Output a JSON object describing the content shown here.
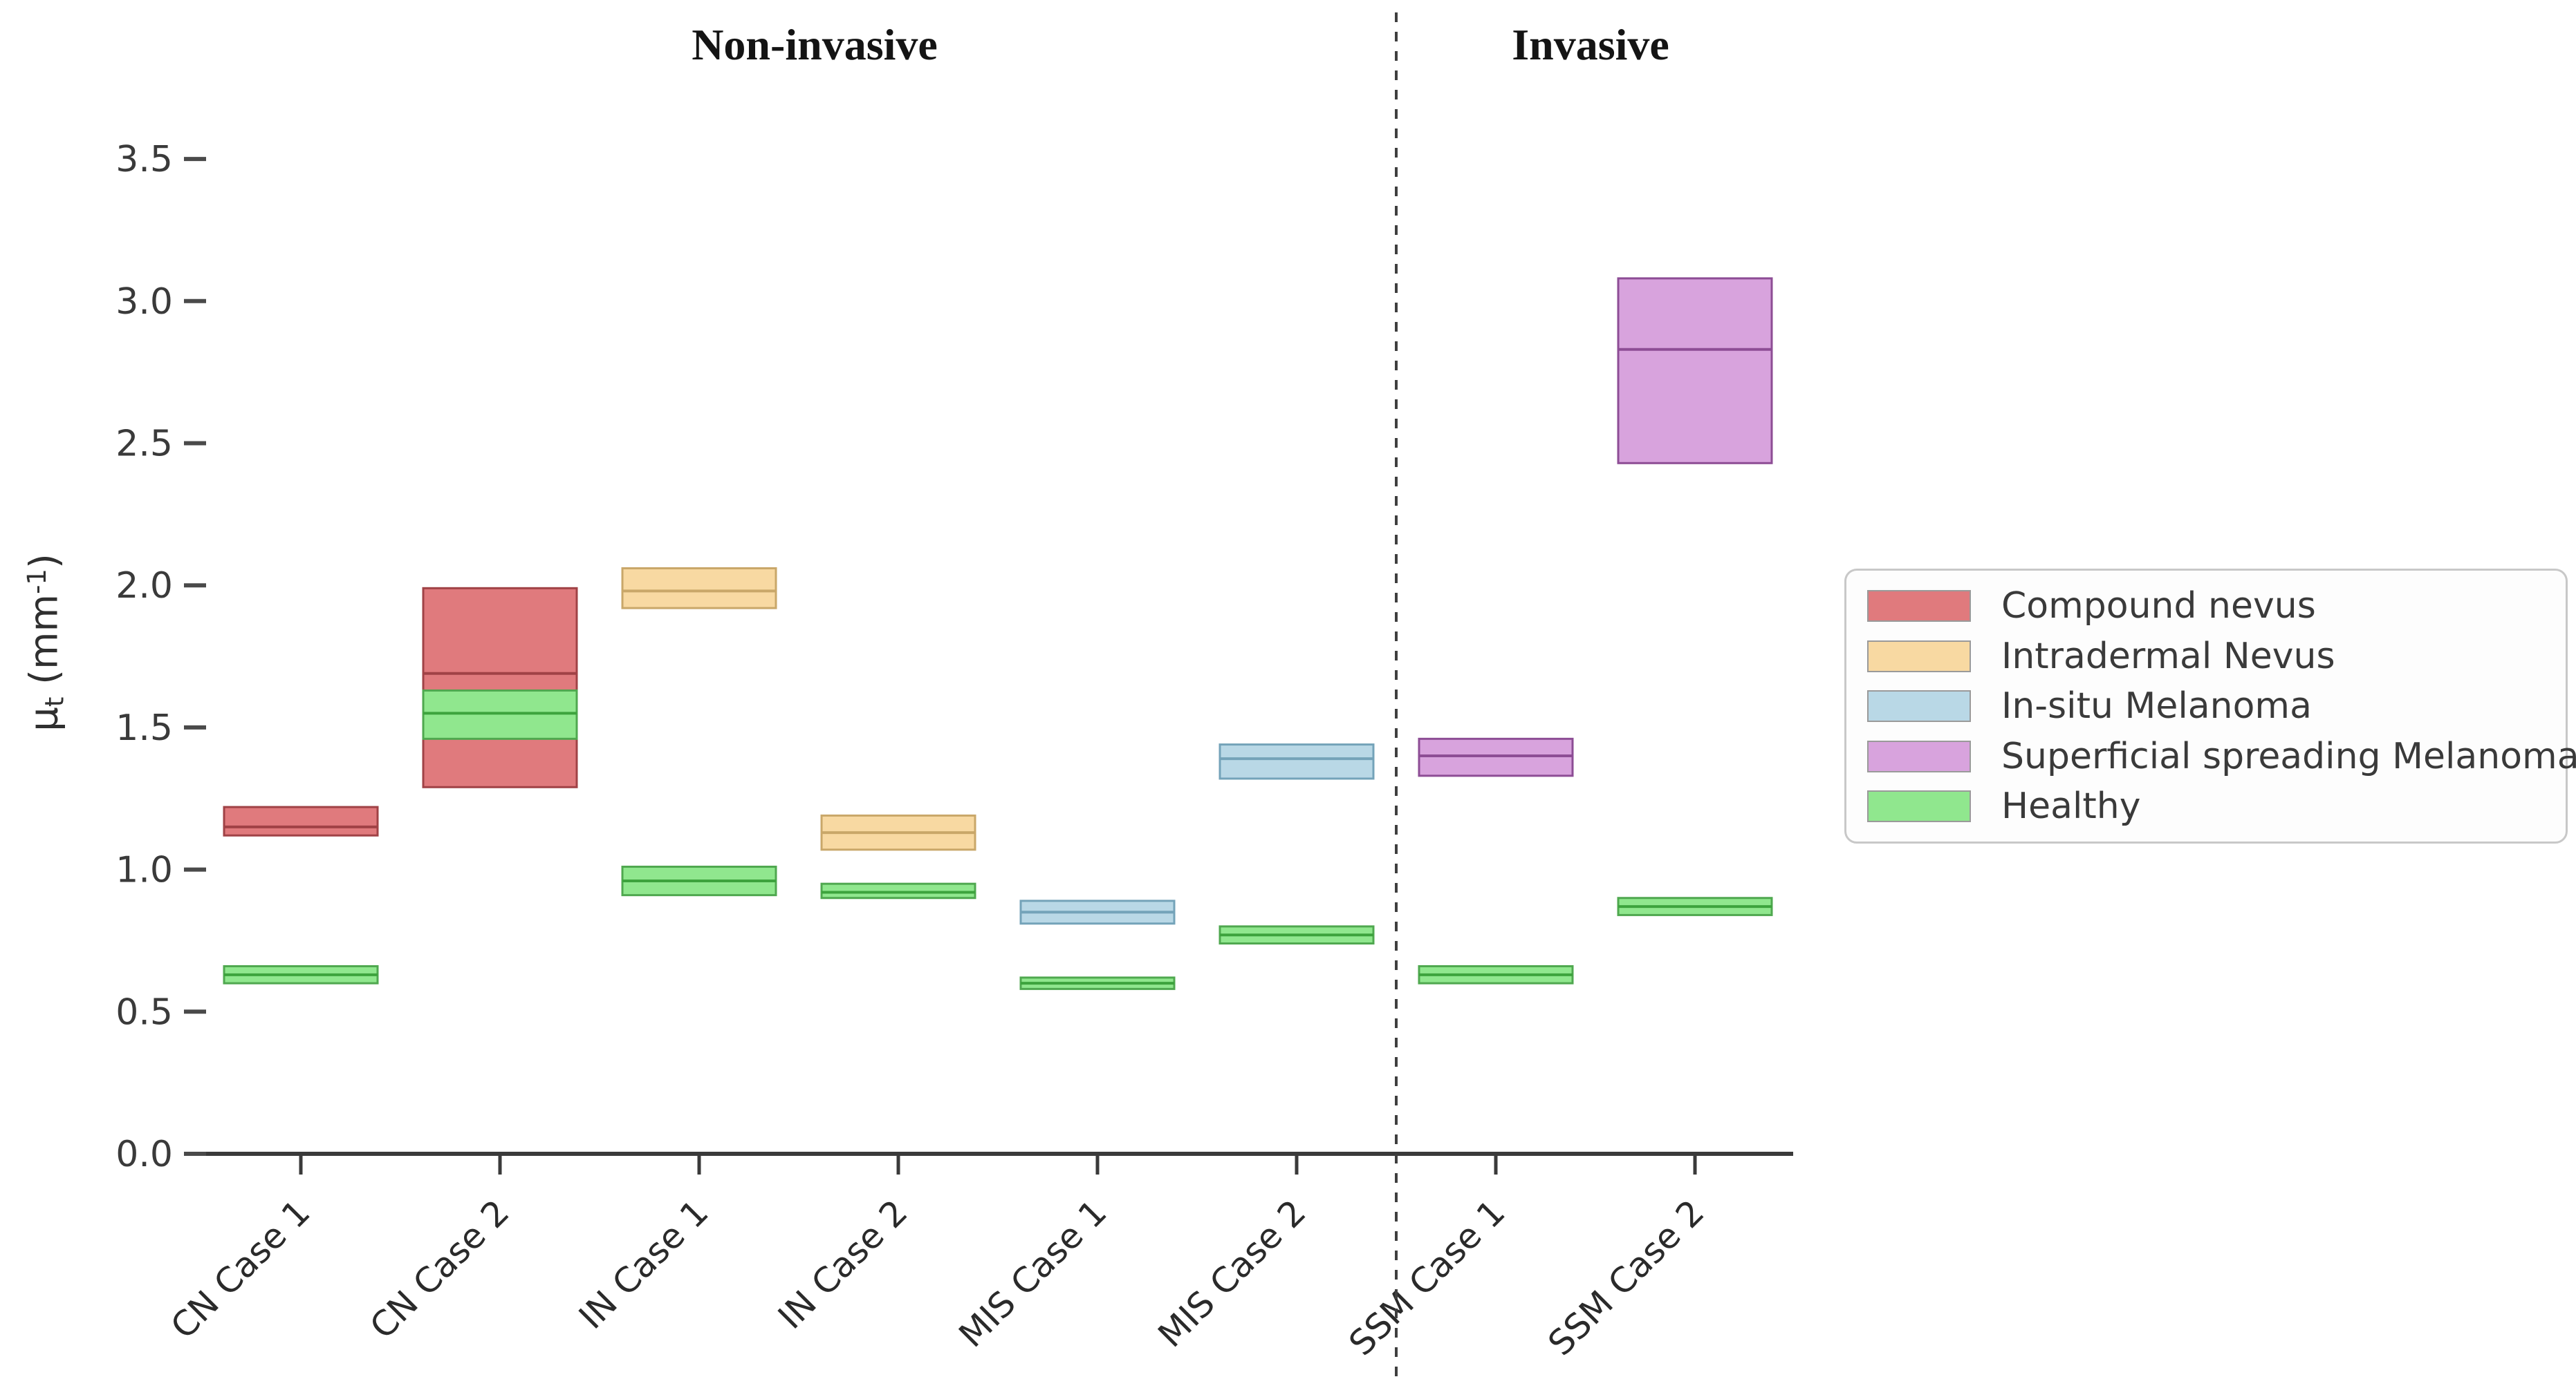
{
  "chart_data": {
    "type": "box",
    "title_left": "Non-invasive",
    "title_right": "Invasive",
    "ylabel": {
      "symbol": "μ",
      "subscript": "t",
      "unit_open": " (mm",
      "unit_exponent": "-1",
      "unit_close": ")"
    },
    "ylabel_text": "μt (mm-1)",
    "ylim": [
      0.0,
      3.75
    ],
    "yticks": [
      "0.0",
      "0.5",
      "1.0",
      "1.5",
      "2.0",
      "2.5",
      "3.0",
      "3.5"
    ],
    "grid": false,
    "legend_position": "right",
    "divider_after_category": "MIS Case 2",
    "sections": [
      {
        "label": "Non-invasive",
        "case_count": 6
      },
      {
        "label": "Invasive",
        "case_count": 2
      }
    ],
    "colors": {
      "compound_nevus": {
        "fill": "#e07a7d",
        "edge": "#a04246",
        "median": "#a04246"
      },
      "intradermal_nevus": {
        "fill": "#f8d9a2",
        "edge": "#c9a769",
        "median": "#c9a769"
      },
      "insitu_melanoma": {
        "fill": "#b9d8e6",
        "edge": "#74a3b9",
        "median": "#74a3b9"
      },
      "ssm": {
        "fill": "#d8a3dd",
        "edge": "#8d4d95",
        "median": "#8d4d95"
      },
      "healthy": {
        "fill": "#90e78e",
        "edge": "#4fa84f",
        "median": "#3da33d"
      }
    },
    "legend": [
      {
        "label": "Compound nevus",
        "color_key": "compound_nevus"
      },
      {
        "label": "Intradermal Nevus",
        "color_key": "intradermal_nevus"
      },
      {
        "label": "In-situ Melanoma",
        "color_key": "insitu_melanoma"
      },
      {
        "label": "Superficial spreading Melanoma",
        "color_key": "ssm"
      },
      {
        "label": "Healthy",
        "color_key": "healthy"
      }
    ],
    "cases": [
      {
        "category": "CN Case 1",
        "section": "Non-invasive",
        "lesion": {
          "name": "Compound nevus",
          "color_key": "compound_nevus",
          "q1": 1.12,
          "median": 1.15,
          "q3": 1.22
        },
        "healthy": {
          "name": "Healthy",
          "color_key": "healthy",
          "q1": 0.6,
          "median": 0.63,
          "q3": 0.66
        }
      },
      {
        "category": "CN Case 2",
        "section": "Non-invasive",
        "lesion": {
          "name": "Compound nevus",
          "color_key": "compound_nevus",
          "q1": 1.29,
          "median": 1.69,
          "q3": 1.99
        },
        "healthy": {
          "name": "Healthy",
          "color_key": "healthy",
          "q1": 1.46,
          "median": 1.55,
          "q3": 1.63
        }
      },
      {
        "category": "IN Case 1",
        "section": "Non-invasive",
        "lesion": {
          "name": "Intradermal Nevus",
          "color_key": "intradermal_nevus",
          "q1": 1.92,
          "median": 1.98,
          "q3": 2.06
        },
        "healthy": {
          "name": "Healthy",
          "color_key": "healthy",
          "q1": 0.91,
          "median": 0.96,
          "q3": 1.01
        }
      },
      {
        "category": "IN Case 2",
        "section": "Non-invasive",
        "lesion": {
          "name": "Intradermal Nevus",
          "color_key": "intradermal_nevus",
          "q1": 1.07,
          "median": 1.13,
          "q3": 1.19
        },
        "healthy": {
          "name": "Healthy",
          "color_key": "healthy",
          "q1": 0.9,
          "median": 0.92,
          "q3": 0.95
        }
      },
      {
        "category": "MIS Case 1",
        "section": "Non-invasive",
        "lesion": {
          "name": "In-situ Melanoma",
          "color_key": "insitu_melanoma",
          "q1": 0.81,
          "median": 0.85,
          "q3": 0.89
        },
        "healthy": {
          "name": "Healthy",
          "color_key": "healthy",
          "q1": 0.58,
          "median": 0.6,
          "q3": 0.62
        }
      },
      {
        "category": "MIS Case 2",
        "section": "Non-invasive",
        "lesion": {
          "name": "In-situ Melanoma",
          "color_key": "insitu_melanoma",
          "q1": 1.32,
          "median": 1.39,
          "q3": 1.44
        },
        "healthy": {
          "name": "Healthy",
          "color_key": "healthy",
          "q1": 0.74,
          "median": 0.77,
          "q3": 0.8
        }
      },
      {
        "category": "SSM Case 1",
        "section": "Invasive",
        "lesion": {
          "name": "Superficial spreading Melanoma",
          "color_key": "ssm",
          "q1": 1.33,
          "median": 1.4,
          "q3": 1.46
        },
        "healthy": {
          "name": "Healthy",
          "color_key": "healthy",
          "q1": 0.6,
          "median": 0.63,
          "q3": 0.66
        }
      },
      {
        "category": "SSM Case 2",
        "section": "Invasive",
        "lesion": {
          "name": "Superficial spreading Melanoma",
          "color_key": "ssm",
          "q1": 2.43,
          "median": 2.83,
          "q3": 3.08
        },
        "healthy": {
          "name": "Healthy",
          "color_key": "healthy",
          "q1": 0.84,
          "median": 0.87,
          "q3": 0.9
        }
      }
    ]
  }
}
